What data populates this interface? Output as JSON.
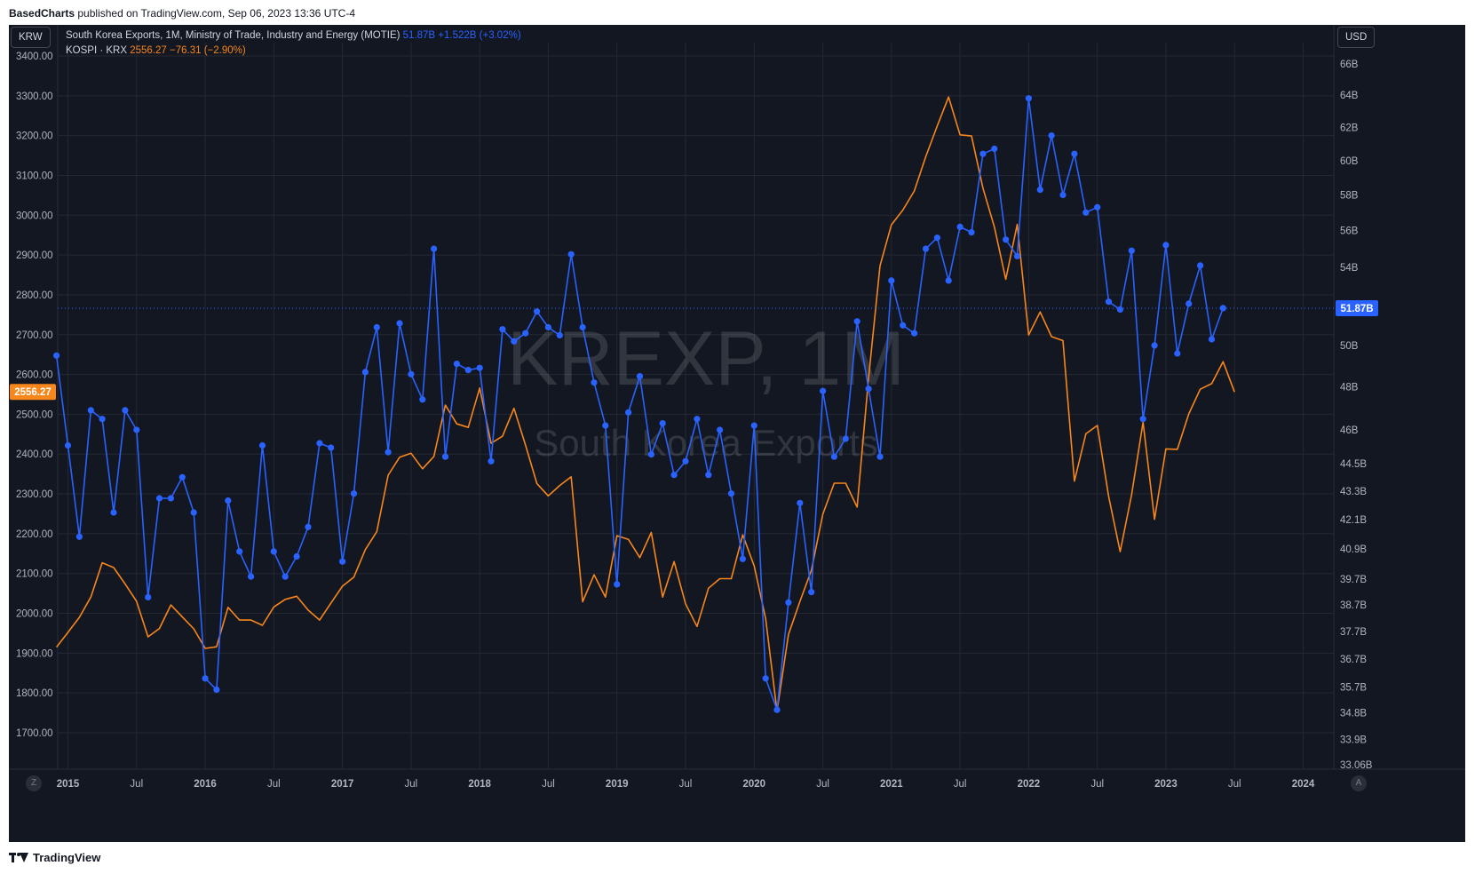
{
  "header": {
    "publisher": "BasedCharts",
    "published_text": "published on TradingView.com, Sep 06, 2023 13:36 UTC-4"
  },
  "legend": {
    "series1_label": "South Korea Exports, 1M, Ministry of Trade, Industry and Energy (MOTIE)",
    "series1_value": "51.87B",
    "series1_change": "+1.522B (+3.02%)",
    "series2_label": "KOSPI · KRX",
    "series2_value": "2556.27",
    "series2_change": "−76.31 (−2.90%)"
  },
  "left_unit": "KRW",
  "right_unit": "USD",
  "watermark": {
    "symbol": "KREXP, 1M",
    "name": "South Korea Exports"
  },
  "footer": {
    "brand": "TradingView"
  },
  "corner_buttons": {
    "left": "Z",
    "right": "A"
  },
  "colors": {
    "background": "#131722",
    "grid": "#242832",
    "exports_line": "#2962ff",
    "kospi_line": "#f7861b",
    "text": "#b2b5be"
  },
  "chart_data": {
    "type": "line",
    "x_start": "2014-12",
    "x_frequency": "monthly",
    "x_ticks": [
      {
        "label": "2015",
        "date": "2015-01"
      },
      {
        "label": "Jul",
        "date": "2015-07"
      },
      {
        "label": "2016",
        "date": "2016-01"
      },
      {
        "label": "Jul",
        "date": "2016-07"
      },
      {
        "label": "2017",
        "date": "2017-01"
      },
      {
        "label": "Jul",
        "date": "2017-07"
      },
      {
        "label": "2018",
        "date": "2018-01"
      },
      {
        "label": "Jul",
        "date": "2018-07"
      },
      {
        "label": "2019",
        "date": "2019-01"
      },
      {
        "label": "Jul",
        "date": "2019-07"
      },
      {
        "label": "2020",
        "date": "2020-01"
      },
      {
        "label": "Jul",
        "date": "2020-07"
      },
      {
        "label": "2021",
        "date": "2021-01"
      },
      {
        "label": "Jul",
        "date": "2021-07"
      },
      {
        "label": "2022",
        "date": "2022-01"
      },
      {
        "label": "Jul",
        "date": "2022-07"
      },
      {
        "label": "2023",
        "date": "2023-01"
      },
      {
        "label": "Jul",
        "date": "2023-07"
      },
      {
        "label": "2024",
        "date": "2024-01"
      }
    ],
    "left_axis": {
      "ticks": [
        1700,
        1800,
        1900,
        2000,
        2100,
        2200,
        2300,
        2400,
        2500,
        2600,
        2700,
        2800,
        2900,
        3000,
        3100,
        3200,
        3300,
        3400
      ],
      "tick_labels": [
        "1700.00",
        "1800.00",
        "1900.00",
        "2000.00",
        "2100.00",
        "2200.00",
        "2300.00",
        "2400.00",
        "2500.00",
        "2600.00",
        "2700.00",
        "2800.00",
        "2900.00",
        "3000.00",
        "3100.00",
        "3200.00",
        "3300.00",
        "3400.00"
      ],
      "current_label": "2556.27",
      "current_value": 2556.27
    },
    "right_axis": {
      "scale": "log",
      "ticks": [
        33.06,
        33.9,
        34.8,
        35.7,
        36.7,
        37.7,
        38.7,
        39.7,
        40.9,
        42.1,
        43.3,
        44.5,
        46,
        48,
        50,
        52,
        54,
        56,
        58,
        60,
        62,
        64,
        66
      ],
      "tick_labels": [
        "33.06B",
        "33.9B",
        "34.8B",
        "35.7B",
        "36.7B",
        "37.7B",
        "38.7B",
        "39.7B",
        "40.9B",
        "42.1B",
        "43.3B",
        "44.5B",
        "46B",
        "48B",
        "50B",
        "",
        "54B",
        "56B",
        "58B",
        "60B",
        "62B",
        "64B",
        "66B"
      ],
      "current_label": "51.87B",
      "current_value": 51.87
    },
    "series": [
      {
        "name": "South Korea Exports",
        "axis": "right",
        "unit": "B USD",
        "markers": true,
        "values": [
          49.5,
          45.3,
          41.4,
          46.9,
          46.5,
          42.4,
          46.9,
          46.0,
          39.0,
          43.0,
          43.0,
          43.9,
          42.4,
          36.0,
          35.6,
          42.9,
          40.8,
          39.8,
          45.3,
          40.8,
          39.8,
          40.6,
          41.8,
          45.4,
          45.2,
          40.4,
          43.2,
          48.7,
          50.9,
          45.0,
          51.1,
          48.6,
          47.4,
          55.0,
          44.8,
          49.1,
          48.8,
          48.9,
          44.6,
          50.8,
          50.2,
          50.6,
          51.7,
          50.9,
          50.5,
          54.7,
          50.9,
          48.2,
          46.2,
          39.5,
          46.8,
          48.5,
          44.9,
          46.3,
          44.0,
          44.6,
          46.5,
          44.0,
          46.0,
          43.2,
          40.5,
          46.2,
          36.0,
          34.9,
          38.8,
          42.8,
          39.2,
          47.8,
          44.8,
          45.6,
          51.2,
          47.9,
          44.8,
          53.3,
          51.0,
          50.6,
          55.0,
          55.6,
          53.3,
          56.2,
          55.9,
          60.4,
          60.7,
          55.5,
          54.6,
          63.8,
          58.3,
          61.5,
          58.0,
          60.4,
          57.0,
          57.3,
          52.2,
          51.8,
          54.9,
          46.5,
          50.0,
          55.2,
          49.6,
          52.1,
          54.1,
          50.3,
          51.87
        ]
      },
      {
        "name": "KOSPI",
        "axis": "left",
        "unit": "KRW",
        "markers": false,
        "values": [
          1915,
          1952,
          1990,
          2041,
          2127,
          2115,
          2074,
          2030,
          1941,
          1962,
          2021,
          1991,
          1961,
          1912,
          1916,
          2015,
          1983,
          1983,
          1970,
          2016,
          2035,
          2043,
          2008,
          1983,
          2026,
          2068,
          2091,
          2160,
          2205,
          2347,
          2392,
          2402,
          2363,
          2394,
          2523,
          2476,
          2467,
          2566,
          2427,
          2445,
          2515,
          2423,
          2326,
          2295,
          2321,
          2343,
          2029,
          2097,
          2041,
          2195,
          2186,
          2140,
          2203,
          2041,
          2130,
          2024,
          1967,
          2063,
          2087,
          2087,
          2197,
          2119,
          1987,
          1754,
          1947,
          2030,
          2108,
          2249,
          2327,
          2327,
          2267,
          2591,
          2873,
          2976,
          3013,
          3061,
          3147,
          3224,
          3297,
          3202,
          3199,
          3068,
          2970,
          2839,
          2977,
          2699,
          2757,
          2695,
          2685,
          2332,
          2451,
          2472,
          2293,
          2155,
          2298,
          2480,
          2236,
          2413,
          2412,
          2501,
          2563,
          2577,
          2632,
          2556
        ]
      }
    ]
  }
}
